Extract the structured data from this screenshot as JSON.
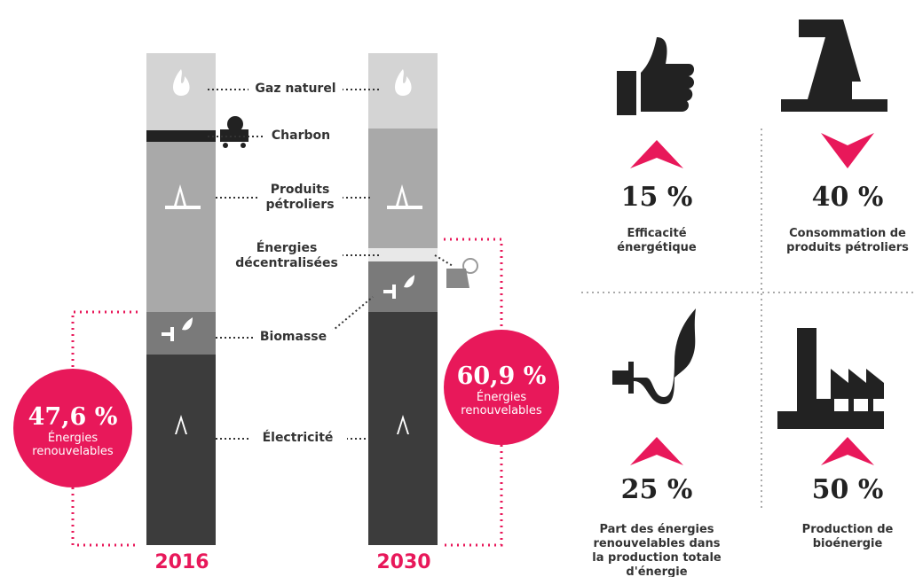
{
  "bars": [
    {
      "year": "2016",
      "badge_value": "47,6 %",
      "badge_text": "Énergies renouvelables"
    },
    {
      "year": "2030",
      "badge_value": "60,9 %",
      "badge_text": "Énergies renouvelables"
    }
  ],
  "segment_labels": [
    "Gaz naturel",
    "Charbon",
    "Produits pétroliers",
    "Énergies décentralisées",
    "Biomasse",
    "Électricité"
  ],
  "stats": [
    {
      "value": "15 %",
      "label": "Efficacité énergétique"
    },
    {
      "value": "40 %",
      "label": "Consommation de produits pétroliers"
    },
    {
      "value": "25 %",
      "label": "Part des énergies renouvelables dans la production totale d'énergie"
    },
    {
      "value": "50 %",
      "label": "Production de bioénergie"
    }
  ]
}
